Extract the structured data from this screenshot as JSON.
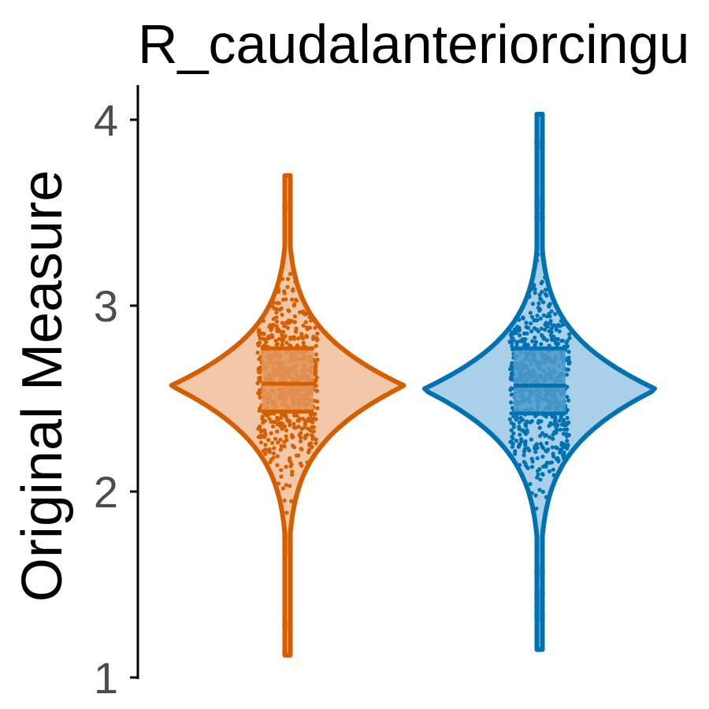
{
  "chart_data": {
    "type": "violin",
    "title": "R_caudalanteriorcingu",
    "ylabel": "Original Measure",
    "xlabel": "",
    "ylim": [
      1,
      4.15
    ],
    "yticks": [
      "1",
      "2",
      "3",
      "4"
    ],
    "legend": "none",
    "grid": false,
    "groups": [
      {
        "color": "#D55E00",
        "fill": "#F2C8A8",
        "box_fill": "#E3955A",
        "min": 1.12,
        "max": 3.7,
        "median": 2.58,
        "q1": 2.43,
        "q3": 2.77,
        "mode": 2.57,
        "outliers": [
          1.28,
          1.69,
          1.75,
          3.53
        ]
      },
      {
        "color": "#0072B2",
        "fill": "#A9D0E8",
        "box_fill": "#4F9BCB",
        "min": 1.15,
        "max": 4.03,
        "median": 2.57,
        "q1": 2.42,
        "q3": 2.77,
        "mode": 2.55,
        "outliers": [
          1.33,
          1.39,
          1.45,
          1.57,
          3.48,
          3.55,
          3.87
        ]
      }
    ]
  }
}
